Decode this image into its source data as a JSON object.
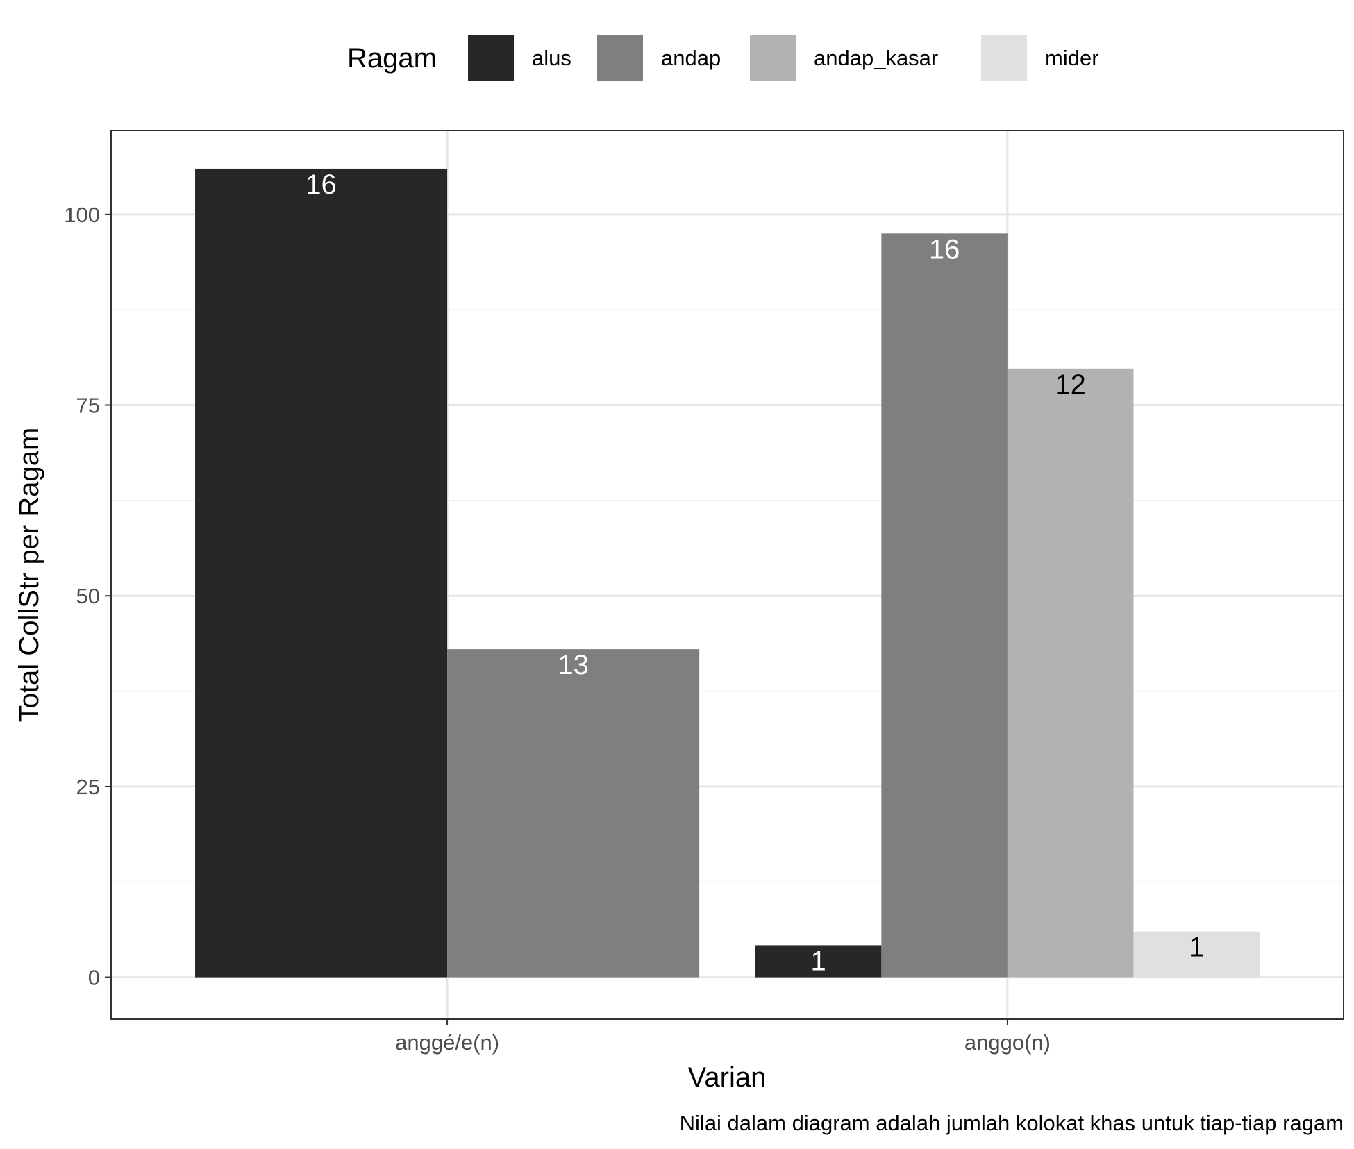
{
  "chart_data": {
    "type": "bar",
    "categories": [
      "anggé/e(n)",
      "anggo(n)"
    ],
    "series": [
      {
        "name": "alus",
        "color": "#272727",
        "values": [
          106,
          4.2
        ],
        "labels": [
          "16",
          "1"
        ],
        "label_color": "#ffffff"
      },
      {
        "name": "andap",
        "color": "#7f7f7f",
        "values": [
          43,
          97.5
        ],
        "labels": [
          "13",
          "16"
        ],
        "label_color": "#ffffff"
      },
      {
        "name": "andap_kasar",
        "color": "#b2b2b2",
        "values": [
          null,
          79.8
        ],
        "labels": [
          null,
          "12"
        ],
        "label_color": "#000000"
      },
      {
        "name": "mider",
        "color": "#e0e0e0",
        "values": [
          null,
          6
        ],
        "labels": [
          null,
          "1"
        ],
        "label_color": "#000000"
      }
    ],
    "legend_title": "Ragam",
    "legend_position": "top",
    "xlabel": "Varian",
    "ylabel": "Total CollStr per Ragam",
    "caption": "Nilai dalam diagram adalah jumlah kolokat khas untuk tiap-tiap ragam",
    "ylim": [
      -5.5,
      111
    ],
    "yticks": [
      0,
      25,
      50,
      75,
      100
    ],
    "grid": true
  }
}
